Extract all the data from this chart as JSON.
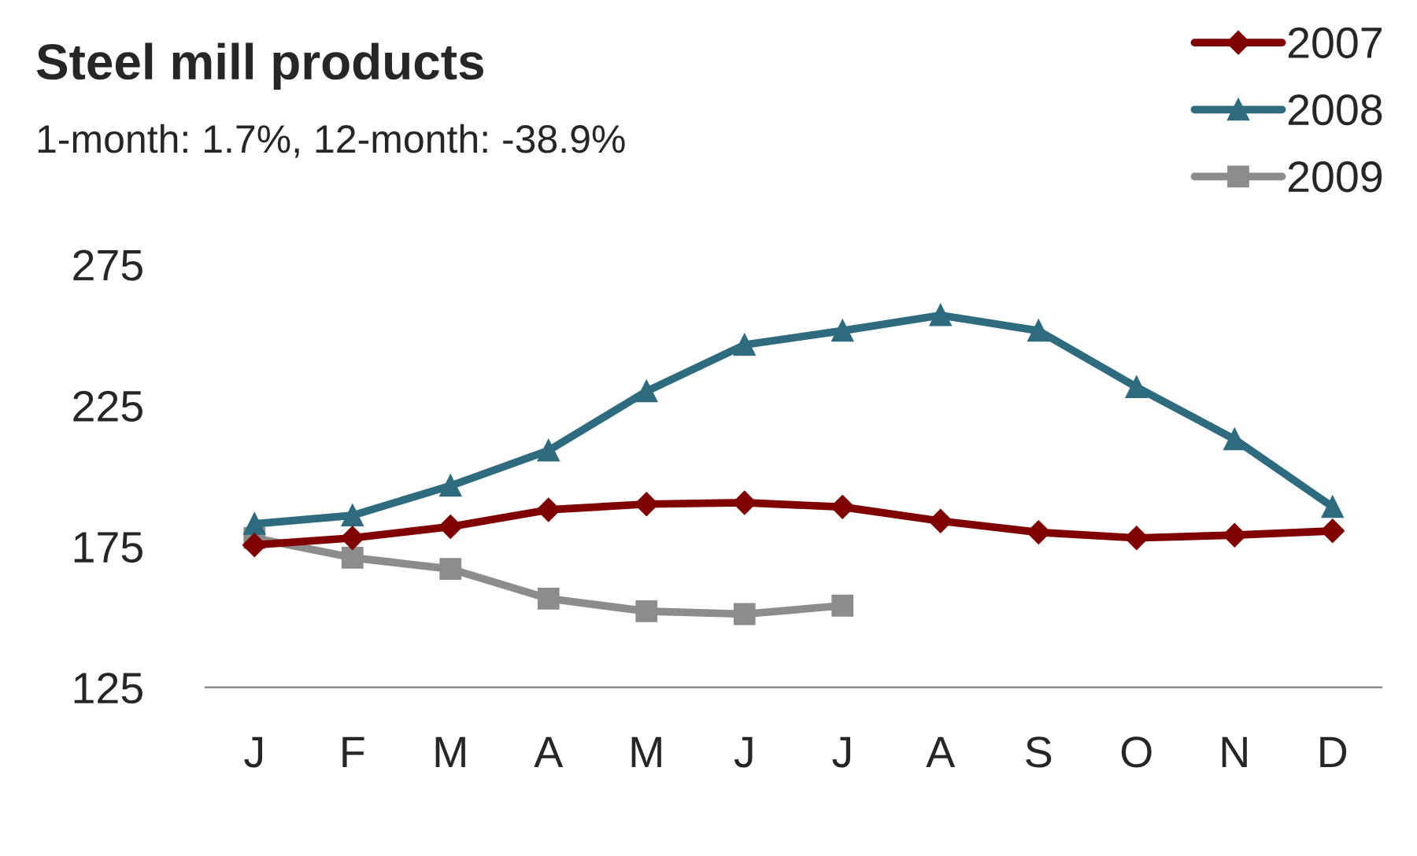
{
  "chart_data": {
    "type": "line",
    "title": "Steel mill products",
    "subtitle": "1-month: 1.7%, 12-month: -38.9%",
    "categories": [
      "J",
      "F",
      "M",
      "A",
      "M",
      "J",
      "J",
      "A",
      "S",
      "O",
      "N",
      "D"
    ],
    "series": [
      {
        "name": "2007",
        "color": "#800000",
        "marker": "diamond",
        "values": [
          175.5,
          178,
          182,
          188,
          190,
          190.5,
          189,
          184,
          180,
          178,
          179,
          180.5
        ]
      },
      {
        "name": "2008",
        "color": "#2e6b7e",
        "marker": "triangle",
        "values": [
          183,
          186,
          196.5,
          209,
          230,
          246.5,
          251.5,
          257,
          251.5,
          231.5,
          213,
          189
        ]
      },
      {
        "name": "2009",
        "color": "#8c8c8c",
        "marker": "square",
        "values": [
          178,
          171,
          167,
          156.5,
          152,
          151,
          154,
          null,
          null,
          null,
          null,
          null
        ]
      }
    ],
    "ylim": [
      125,
      275
    ],
    "yticks": [
      125,
      175,
      225,
      275
    ],
    "grid": false,
    "legend": "top right",
    "line_style": "solid"
  }
}
